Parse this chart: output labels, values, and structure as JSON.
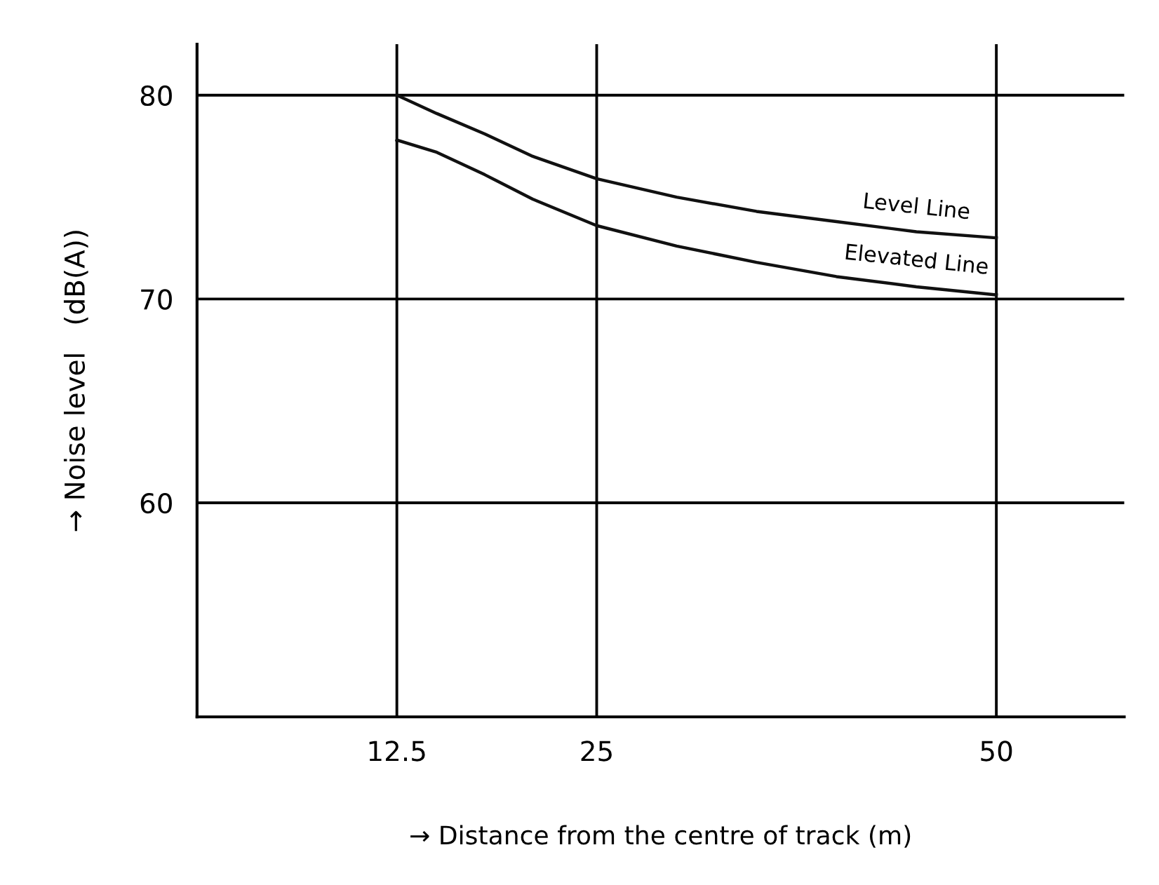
{
  "chart_data": {
    "type": "line",
    "xlabel": "→ Distance from the centre of track (m)",
    "ylabel": "→ Noise level   (dB(A))",
    "xlim": [
      0,
      58
    ],
    "ylim": [
      49.5,
      82.5
    ],
    "xticks": [
      12.5,
      25,
      50
    ],
    "yticks": [
      60,
      70,
      80
    ],
    "grid": true,
    "legend": false,
    "marker": "none",
    "line_style": "solid",
    "series": [
      {
        "name": "Level Line",
        "color": "#111111",
        "x": [
          12.5,
          15,
          18,
          21,
          25,
          30,
          35,
          40,
          45,
          50
        ],
        "values": [
          80,
          79.1,
          78.1,
          77,
          75.9,
          75,
          74.3,
          73.8,
          73.3,
          73
        ]
      },
      {
        "name": "Elevated Line",
        "color": "#111111",
        "x": [
          12.5,
          15,
          18,
          21,
          25,
          30,
          35,
          40,
          45,
          50
        ],
        "values": [
          77.8,
          77.2,
          76.1,
          74.9,
          73.6,
          72.6,
          71.8,
          71.1,
          70.6,
          70.2
        ]
      }
    ]
  }
}
